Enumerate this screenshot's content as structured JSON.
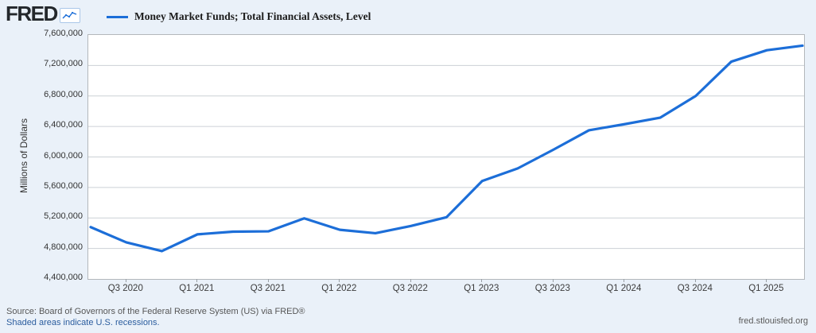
{
  "header": {
    "logo_text": "FRED",
    "legend_label": "Money Market Funds; Total Financial Assets, Level"
  },
  "chart_data": {
    "type": "line",
    "title": "Money Market Funds; Total Financial Assets, Level",
    "ylabel": "Millions of Dollars",
    "ylim": [
      4400000,
      7600000
    ],
    "y_tick_step": 400000,
    "y_tick_labels": [
      "7,600,000",
      "7,200,000",
      "6,800,000",
      "6,400,000",
      "6,000,000",
      "5,600,000",
      "5,200,000",
      "4,800,000",
      "4,400,000"
    ],
    "grid": "horizontal",
    "legend_position": "top-left",
    "x": [
      "2020 Q2",
      "2020 Q3",
      "2020 Q4",
      "2021 Q1",
      "2021 Q2",
      "2021 Q3",
      "2021 Q4",
      "2022 Q1",
      "2022 Q2",
      "2022 Q3",
      "2022 Q4",
      "2023 Q1",
      "2023 Q2",
      "2023 Q3",
      "2023 Q4",
      "2024 Q1",
      "2024 Q2",
      "2024 Q3",
      "2024 Q4",
      "2025 Q1",
      "2025 Q2"
    ],
    "series": [
      {
        "name": "Money Market Funds; Total Financial Assets, Level",
        "values": [
          5080000,
          4880000,
          4765000,
          4985000,
          5020000,
          5025000,
          5195000,
          5045000,
          5000000,
          5095000,
          5210000,
          5685000,
          5850000,
          6095000,
          6350000,
          6430000,
          6515000,
          6800000,
          7250000,
          7400000,
          7460000
        ]
      }
    ],
    "x_tick_labels": [
      "Q3 2020",
      "Q1 2021",
      "Q3 2021",
      "Q1 2022",
      "Q3 2022",
      "Q1 2023",
      "Q3 2023",
      "Q1 2024",
      "Q3 2024",
      "Q1 2025"
    ],
    "x_tick_indices": [
      1,
      3,
      5,
      7,
      9,
      11,
      13,
      15,
      17,
      19
    ]
  },
  "footer": {
    "source": "Source: Board of Governors of the Federal Reserve System (US) via FRED®",
    "recession_note": "Shaded areas indicate U.S. recessions.",
    "site": "fred.stlouisfed.org"
  },
  "colors": {
    "line": "#1c6ed8",
    "background": "#eaf1f9",
    "plot_background": "#ffffff",
    "gridline": "#ccd1d6",
    "plot_border": "#b3b7bb",
    "link": "#2b5d9e"
  }
}
